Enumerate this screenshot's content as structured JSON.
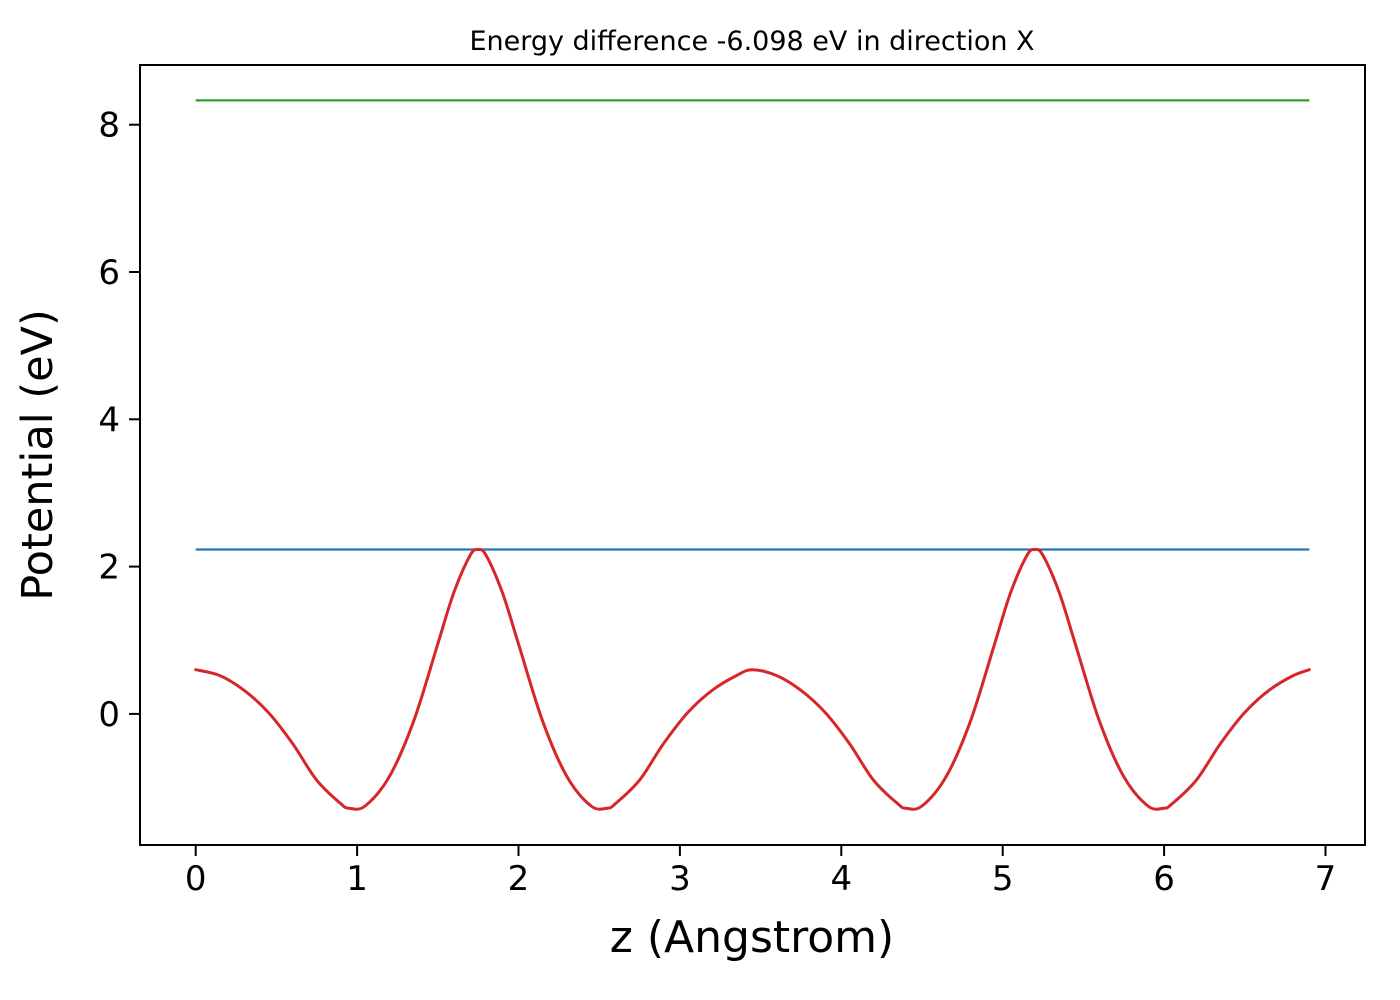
{
  "chart_data": {
    "type": "line",
    "title": "Energy difference -6.098 eV in direction X",
    "xlabel": "z (Angstrom)",
    "ylabel": "Potential (eV)",
    "xlim": [
      -0.345,
      7.245
    ],
    "ylim": [
      -1.78,
      8.81
    ],
    "x_ticks": [
      0,
      1,
      2,
      3,
      4,
      5,
      6,
      7
    ],
    "y_ticks": [
      0,
      2,
      4,
      6,
      8
    ],
    "grid": false,
    "legend": "none",
    "series": [
      {
        "name": "vacuum-level-line",
        "kind": "hline",
        "y": 8.33,
        "x_start": 0.0,
        "x_end": 6.9,
        "color": "#2ca02c",
        "width": 2.2
      },
      {
        "name": "max-potential-line",
        "kind": "hline",
        "y": 2.232,
        "x_start": 0.0,
        "x_end": 6.9,
        "color": "#1f77b4",
        "width": 2.2
      },
      {
        "name": "planar-average-potential-curve",
        "kind": "curve",
        "color": "#d62728",
        "width": 3,
        "x": [
          0.0,
          0.15,
          0.3,
          0.45,
          0.6,
          0.75,
          0.9,
          0.95,
          1.05,
          1.2,
          1.35,
          1.5,
          1.6,
          1.7,
          1.75,
          1.8,
          1.9,
          2.0,
          2.15,
          2.3,
          2.45,
          2.55,
          2.6,
          2.75,
          2.9,
          3.05,
          3.2,
          3.35,
          3.45,
          3.6,
          3.75,
          3.9,
          4.05,
          4.2,
          4.35,
          4.4,
          4.5,
          4.65,
          4.8,
          4.95,
          5.05,
          5.15,
          5.2,
          5.25,
          5.35,
          5.45,
          5.6,
          5.75,
          5.9,
          6.0,
          6.05,
          6.2,
          6.35,
          6.5,
          6.65,
          6.8,
          6.9
        ],
        "y": [
          0.6,
          0.52,
          0.32,
          0.02,
          -0.4,
          -0.9,
          -1.22,
          -1.28,
          -1.25,
          -0.85,
          -0.1,
          0.95,
          1.65,
          2.15,
          2.23,
          2.15,
          1.65,
          0.95,
          -0.1,
          -0.85,
          -1.25,
          -1.28,
          -1.22,
          -0.9,
          -0.4,
          0.02,
          0.32,
          0.52,
          0.6,
          0.52,
          0.32,
          0.02,
          -0.4,
          -0.9,
          -1.22,
          -1.28,
          -1.25,
          -0.85,
          -0.1,
          0.95,
          1.65,
          2.15,
          2.23,
          2.15,
          1.65,
          0.95,
          -0.1,
          -0.85,
          -1.25,
          -1.28,
          -1.22,
          -0.9,
          -0.4,
          0.02,
          0.32,
          0.52,
          0.6
        ]
      }
    ]
  }
}
